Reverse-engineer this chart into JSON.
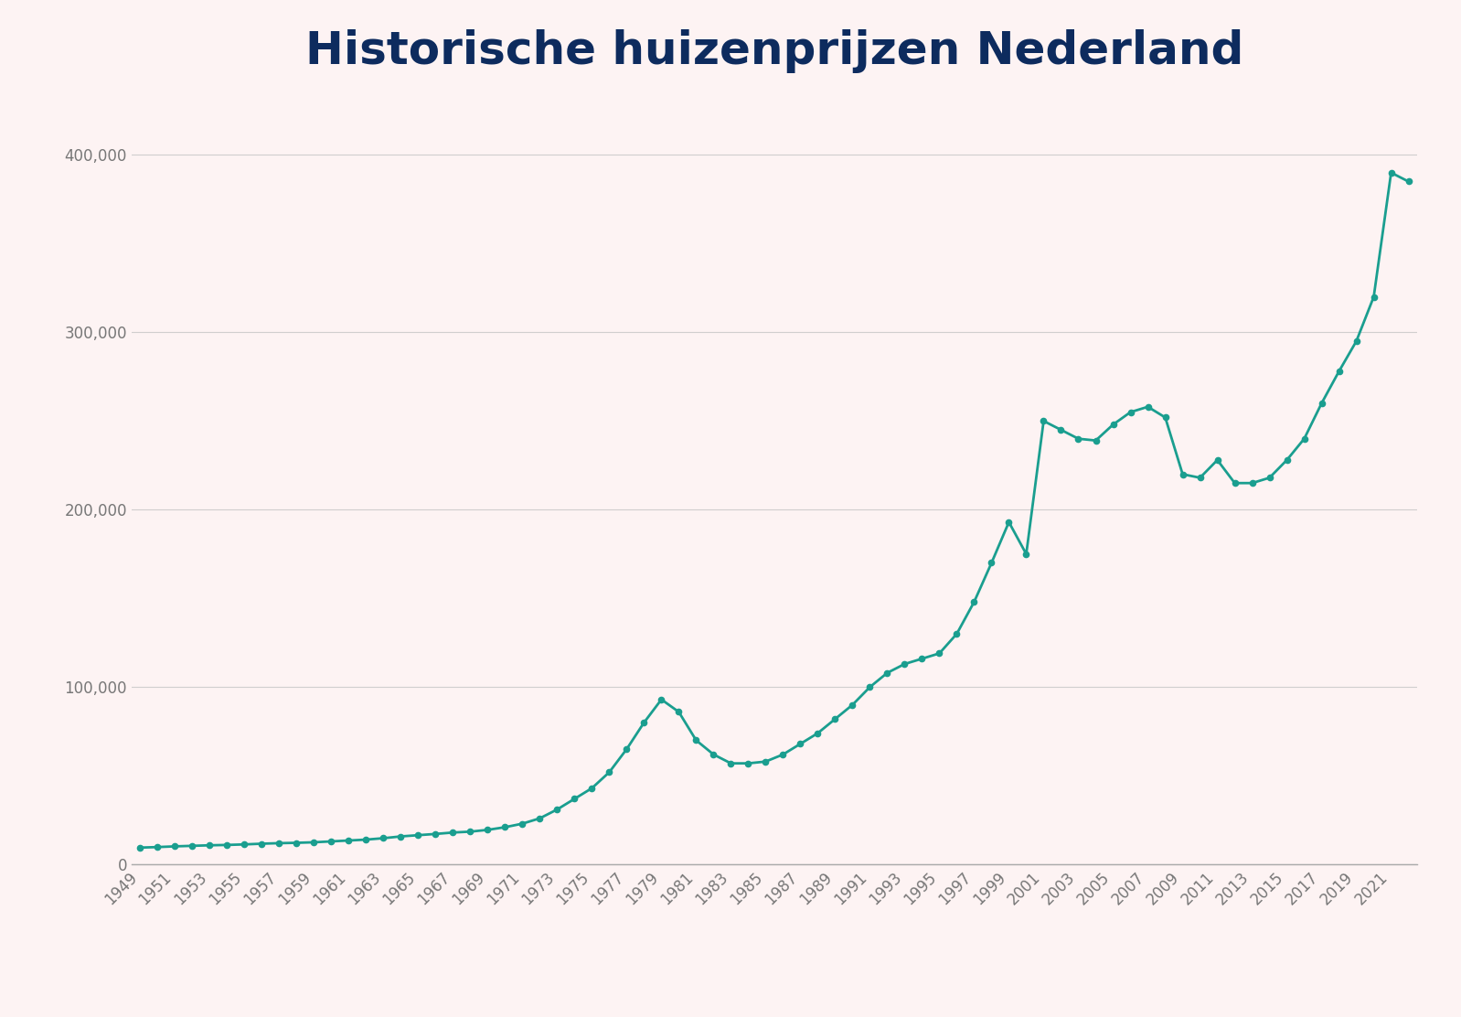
{
  "title": "Historische huizenprijzen Nederland",
  "background_color": "#fdf3f3",
  "title_color": "#0d2b5e",
  "line_color": "#1a9e8f",
  "marker_color": "#1a9e8f",
  "grid_color": "#d0cece",
  "axis_color": "#aaaaaa",
  "tick_color": "#777777",
  "years": [
    1949,
    1950,
    1951,
    1952,
    1953,
    1954,
    1955,
    1956,
    1957,
    1958,
    1959,
    1960,
    1961,
    1962,
    1963,
    1964,
    1965,
    1966,
    1967,
    1968,
    1969,
    1970,
    1971,
    1972,
    1973,
    1974,
    1975,
    1976,
    1977,
    1978,
    1979,
    1980,
    1981,
    1982,
    1983,
    1984,
    1985,
    1986,
    1987,
    1988,
    1989,
    1990,
    1991,
    1992,
    1993,
    1994,
    1995,
    1996,
    1997,
    1998,
    1999,
    2000,
    2001,
    2002,
    2003,
    2004,
    2005,
    2006,
    2007,
    2008,
    2009,
    2010,
    2011,
    2012,
    2013,
    2014,
    2015,
    2016,
    2017,
    2018,
    2019,
    2020,
    2021,
    2022
  ],
  "prices": [
    9500,
    9800,
    10200,
    10500,
    10800,
    11000,
    11300,
    11700,
    12000,
    12200,
    12500,
    13000,
    13500,
    14000,
    14800,
    15800,
    16500,
    17200,
    18000,
    18500,
    19500,
    21000,
    23000,
    26000,
    31000,
    37000,
    43000,
    52000,
    65000,
    80000,
    93000,
    86000,
    70000,
    62000,
    57000,
    57000,
    58000,
    62000,
    68000,
    74000,
    82000,
    90000,
    100000,
    108000,
    113000,
    116000,
    119000,
    130000,
    148000,
    170000,
    193000,
    175000,
    250000,
    245000,
    240000,
    239000,
    248000,
    255000,
    258000,
    252000,
    220000,
    218000,
    228000,
    215000,
    215000,
    218000,
    228000,
    240000,
    260000,
    278000,
    295000,
    320000,
    390000,
    385000
  ],
  "ylim": [
    0,
    430000
  ],
  "yticks": [
    0,
    100000,
    200000,
    300000,
    400000
  ],
  "title_fontsize": 36,
  "tick_fontsize": 12,
  "xlabel_every": 2
}
